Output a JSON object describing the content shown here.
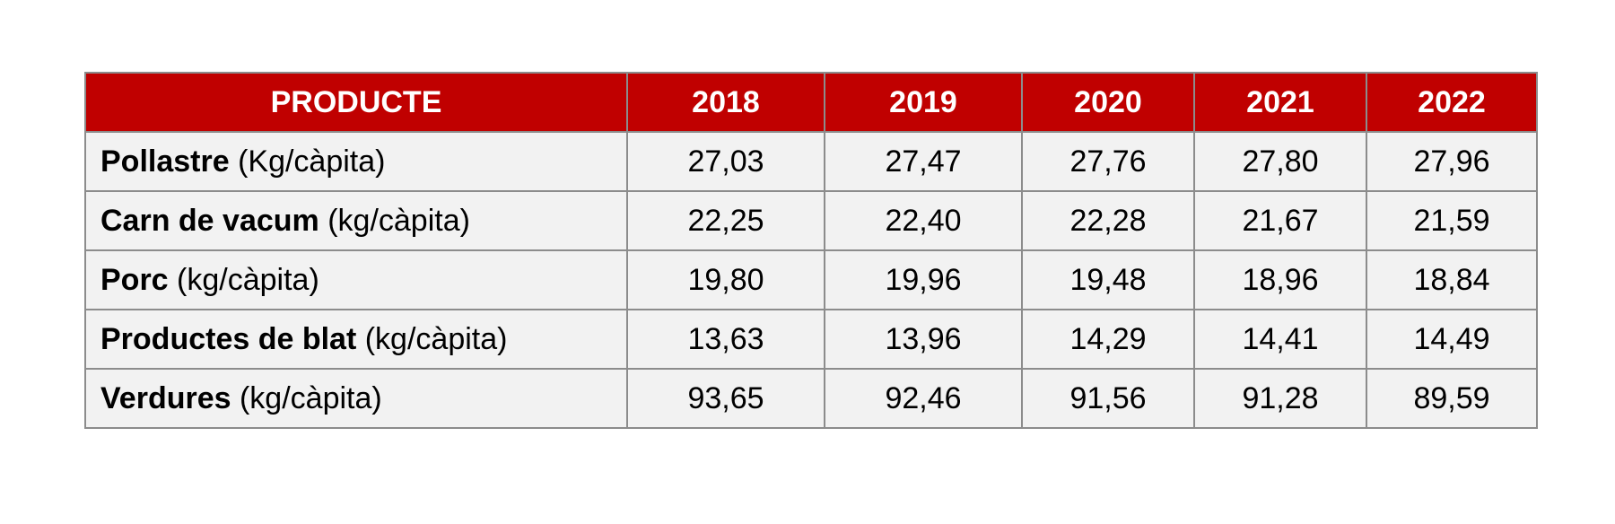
{
  "header": {
    "product": "PRODUCTE",
    "years": [
      "2018",
      "2019",
      "2020",
      "2021",
      "2022"
    ]
  },
  "rows": [
    {
      "name": "Pollastre",
      "unit": "(Kg/càpita)",
      "values": [
        "27,03",
        "27,47",
        "27,76",
        "27,80",
        "27,96"
      ]
    },
    {
      "name": "Carn de vacum",
      "unit": "(kg/càpita)",
      "values": [
        "22,25",
        "22,40",
        "22,28",
        "21,67",
        "21,59"
      ]
    },
    {
      "name": "Porc",
      "unit": "(kg/càpita)",
      "values": [
        "19,80",
        "19,96",
        "19,48",
        "18,96",
        "18,84"
      ]
    },
    {
      "name": "Productes de blat",
      "unit": "(kg/càpita)",
      "values": [
        "13,63",
        "13,96",
        "14,29",
        "14,41",
        "14,49"
      ]
    },
    {
      "name": "Verdures",
      "unit": "(kg/càpita)",
      "values": [
        "93,65",
        "92,46",
        "91,56",
        "91,28",
        "89,59"
      ]
    }
  ],
  "colors": {
    "header_bg": "#c00000",
    "header_text": "#ffffff",
    "row_bg": "#f2f2f2",
    "border": "#8c8c8c"
  }
}
